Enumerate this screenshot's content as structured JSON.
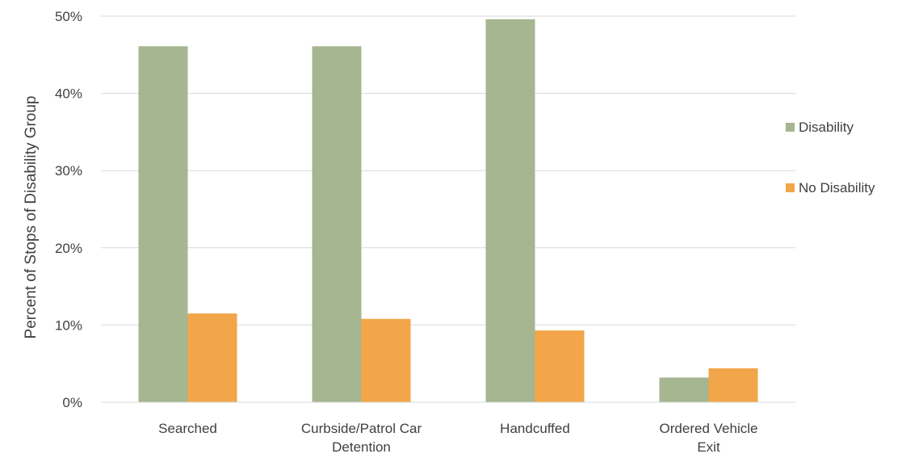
{
  "chart_data": {
    "type": "bar",
    "title": "",
    "xlabel": "",
    "ylabel": "Percent of Stops of Disability Group",
    "ylim": [
      0,
      50
    ],
    "y_ticks": [
      "0%",
      "10%",
      "20%",
      "30%",
      "40%",
      "50%"
    ],
    "y_tick_values": [
      0,
      10,
      20,
      30,
      40,
      50
    ],
    "categories": [
      [
        "Searched"
      ],
      [
        "Curbside/Patrol Car",
        "Detention"
      ],
      [
        "Handcuffed"
      ],
      [
        "Ordered Vehicle",
        "Exit"
      ]
    ],
    "series": [
      {
        "name": "Disability",
        "color": "#a5b690",
        "values": [
          46.1,
          46.1,
          49.6,
          3.2
        ]
      },
      {
        "name": "No Disability",
        "color": "#f2a649",
        "values": [
          11.5,
          10.8,
          9.3,
          4.4
        ]
      }
    ],
    "grid": true,
    "legend_position": "right"
  }
}
